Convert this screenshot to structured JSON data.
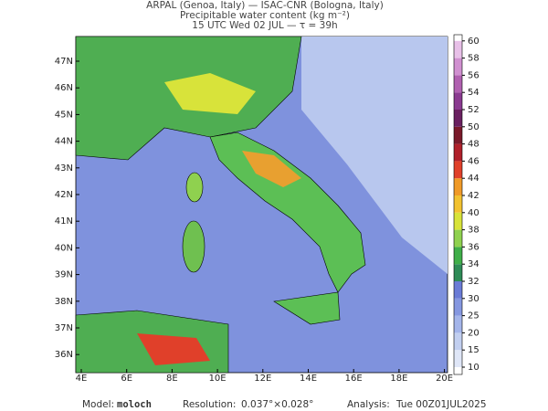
{
  "header": {
    "line1": "ARPAL (Genoa, Italy)  —  ISAC-CNR (Bologna, Italy)",
    "line2": "Precipitable water content (kg m⁻²)",
    "line3": "15 UTC Wed 02 JUL  —  τ = 39h"
  },
  "map": {
    "lat_labels": [
      "47N",
      "46N",
      "45N",
      "44N",
      "43N",
      "42N",
      "41N",
      "40N",
      "39N",
      "38N",
      "37N",
      "36N"
    ],
    "lon_labels": [
      "4E",
      "6E",
      "8E",
      "10E",
      "12E",
      "14E",
      "16E",
      "18E",
      "20E"
    ]
  },
  "colorbar": {
    "ticks": [
      10,
      15,
      20,
      25,
      30,
      32,
      34,
      36,
      38,
      40,
      42,
      44,
      46,
      48,
      50,
      52,
      54,
      56,
      58,
      60
    ],
    "colors": [
      "#dfe6f7",
      "#c2cff0",
      "#a4b5ea",
      "#8597e0",
      "#6a7bd6",
      "#2e8b57",
      "#3fae49",
      "#8fd14f",
      "#d8e33a",
      "#f2c230",
      "#f09a28",
      "#e0402a",
      "#b0202a",
      "#7a1a2a",
      "#6a2060",
      "#8a3a90",
      "#b060b0",
      "#d090d0",
      "#e8c0e8"
    ]
  },
  "footer": {
    "model_label": "Model:",
    "model": "moloch",
    "resolution_label": "Resolution:",
    "resolution": "0.037°×0.028°",
    "analysis_label": "Analysis:",
    "analysis": "Tue 00Z01JUL2025"
  }
}
